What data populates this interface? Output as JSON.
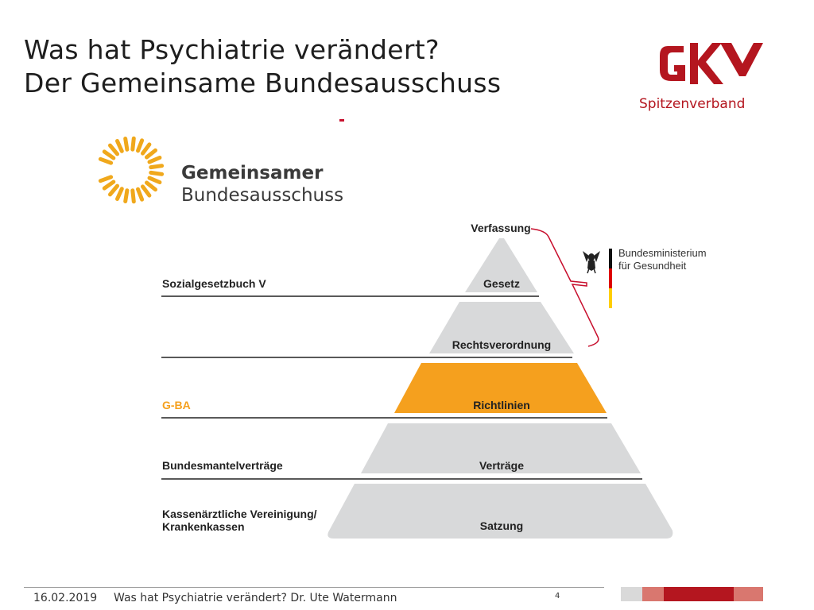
{
  "title": {
    "line1": "Was hat Psychiatrie verändert?",
    "line2": "Der Gemeinsame Bundesausschuss"
  },
  "brand_logo": {
    "name": "GKV",
    "subtitle": "Spitzenverband",
    "color": "#b4161f"
  },
  "gba_logo": {
    "line1": "Gemeinsamer",
    "line2": "Bundesausschuss",
    "color": "#f0a81c"
  },
  "diagram": {
    "apex_label": "Verfassung",
    "levels": [
      {
        "name": "Gesetz",
        "left_label": "Sozialgesetzbuch V",
        "left_label_2": "",
        "highlight": false
      },
      {
        "name": "Rechtsverordnung",
        "left_label": "",
        "left_label_2": "",
        "highlight": false
      },
      {
        "name": "Richtlinien",
        "left_label": "G-BA",
        "left_label_2": "",
        "highlight": true
      },
      {
        "name": "Verträge",
        "left_label": "Bundesmantelverträge",
        "left_label_2": "",
        "highlight": false
      },
      {
        "name": "Satzung",
        "left_label": "Kassenärztliche Vereinigung/",
        "left_label_2": "Krankenkassen",
        "highlight": false
      }
    ],
    "ministry": {
      "line1": "Bundesministerium",
      "line2": "für Gesundheit"
    },
    "colors": {
      "tier": "#d8d9da",
      "highlight": "#f5a01e",
      "highlight_label": "#f5a01e",
      "bracket": "#c8102e",
      "line": "#222222"
    }
  },
  "footer": {
    "date": "16.02.2019",
    "text": "Was hat Psychiatrie verändert? Dr. Ute Watermann",
    "page": "4"
  }
}
